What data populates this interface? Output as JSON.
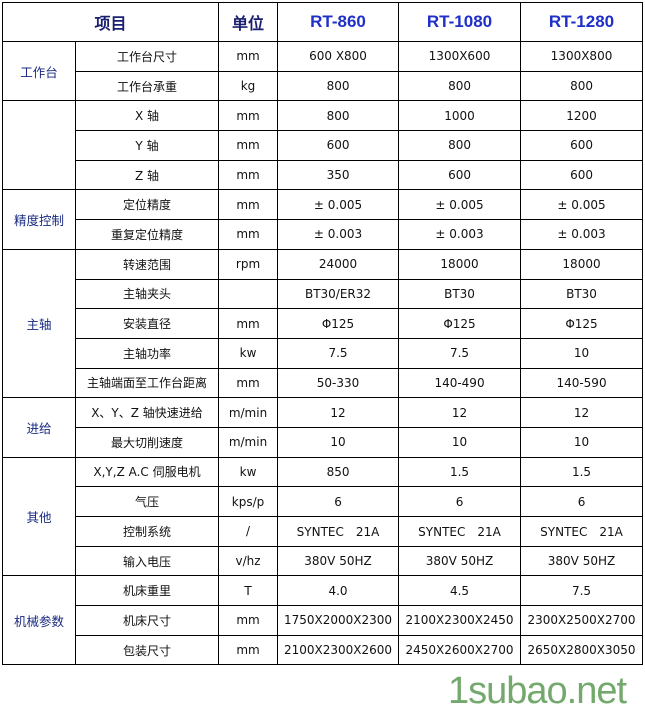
{
  "header": {
    "item": "项目",
    "unit": "单位",
    "models": [
      "RT-860",
      "RT-1080",
      "RT-1280"
    ]
  },
  "groups": [
    {
      "name": "工作台",
      "rows": [
        {
          "item": "工作台尺寸",
          "unit": "mm",
          "values": [
            "600 X800",
            "1300X600",
            "1300X800"
          ]
        },
        {
          "item": "工作台承重",
          "unit": "kg",
          "values": [
            "800",
            "800",
            "800"
          ]
        }
      ]
    },
    {
      "name": "",
      "rows": [
        {
          "item": "X 轴",
          "unit": "mm",
          "values": [
            "800",
            "1000",
            "1200"
          ]
        },
        {
          "item": "Y 轴",
          "unit": "mm",
          "values": [
            "600",
            "800",
            "600"
          ]
        },
        {
          "item": "Z 轴",
          "unit": "mm",
          "values": [
            "350",
            "600",
            "600"
          ]
        }
      ]
    },
    {
      "name": "精度控制",
      "rows": [
        {
          "item": "定位精度",
          "unit": "mm",
          "values": [
            "± 0.005",
            "± 0.005",
            "± 0.005"
          ]
        },
        {
          "item": "重复定位精度",
          "unit": "mm",
          "values": [
            "± 0.003",
            "± 0.003",
            "± 0.003"
          ]
        }
      ]
    },
    {
      "name": "主轴",
      "rows": [
        {
          "item": "转速范围",
          "unit": "rpm",
          "values": [
            "24000",
            "18000",
            "18000"
          ]
        },
        {
          "item": "主轴夹头",
          "unit": "",
          "values": [
            "BT30/ER32",
            "BT30",
            "BT30"
          ]
        },
        {
          "item": "安装直径",
          "unit": "mm",
          "values": [
            "Φ125",
            "Φ125",
            "Φ125"
          ]
        },
        {
          "item": "主轴功率",
          "unit": "kw",
          "values": [
            "7.5",
            "7.5",
            "10"
          ]
        },
        {
          "item": "主轴端面至工作台距离",
          "unit": "mm",
          "values": [
            "50-330",
            "140-490",
            "140-590"
          ]
        }
      ]
    },
    {
      "name": "进给",
      "rows": [
        {
          "item": "X、Y、Z 轴快速进给",
          "unit": "m/min",
          "values": [
            "12",
            "12",
            "12"
          ]
        },
        {
          "item": "最大切削速度",
          "unit": "m/min",
          "values": [
            "10",
            "10",
            "10"
          ]
        }
      ]
    },
    {
      "name": "其他",
      "rows": [
        {
          "item": "X,Y,Z A.C 伺服电机",
          "unit": "kw",
          "values": [
            "850",
            "1.5",
            "1.5"
          ]
        },
        {
          "item": "气压",
          "unit": "kps/p",
          "values": [
            "6",
            "6",
            "6"
          ]
        },
        {
          "item": "控制系统",
          "unit": "/",
          "values": [
            "SYNTEC　21A",
            "SYNTEC　21A",
            "SYNTEC　21A"
          ]
        },
        {
          "item": "输入电压",
          "unit": "v/hz",
          "values": [
            "380V 50HZ",
            "380V 50HZ",
            "380V 50HZ"
          ]
        }
      ]
    },
    {
      "name": "机械参数",
      "rows": [
        {
          "item": "机床重里",
          "unit": "T",
          "values": [
            "4.0",
            "4.5",
            "7.5"
          ]
        },
        {
          "item": "机床尺寸",
          "unit": "mm",
          "values": [
            "1750X2000X2300",
            "2100X2300X2450",
            "2300X2500X2700"
          ]
        },
        {
          "item": "包装尺寸",
          "unit": "mm",
          "values": [
            "2100X2300X2600",
            "2450X2600X2700",
            "2650X2800X3050"
          ]
        }
      ]
    }
  ],
  "watermark": "1subao.net"
}
